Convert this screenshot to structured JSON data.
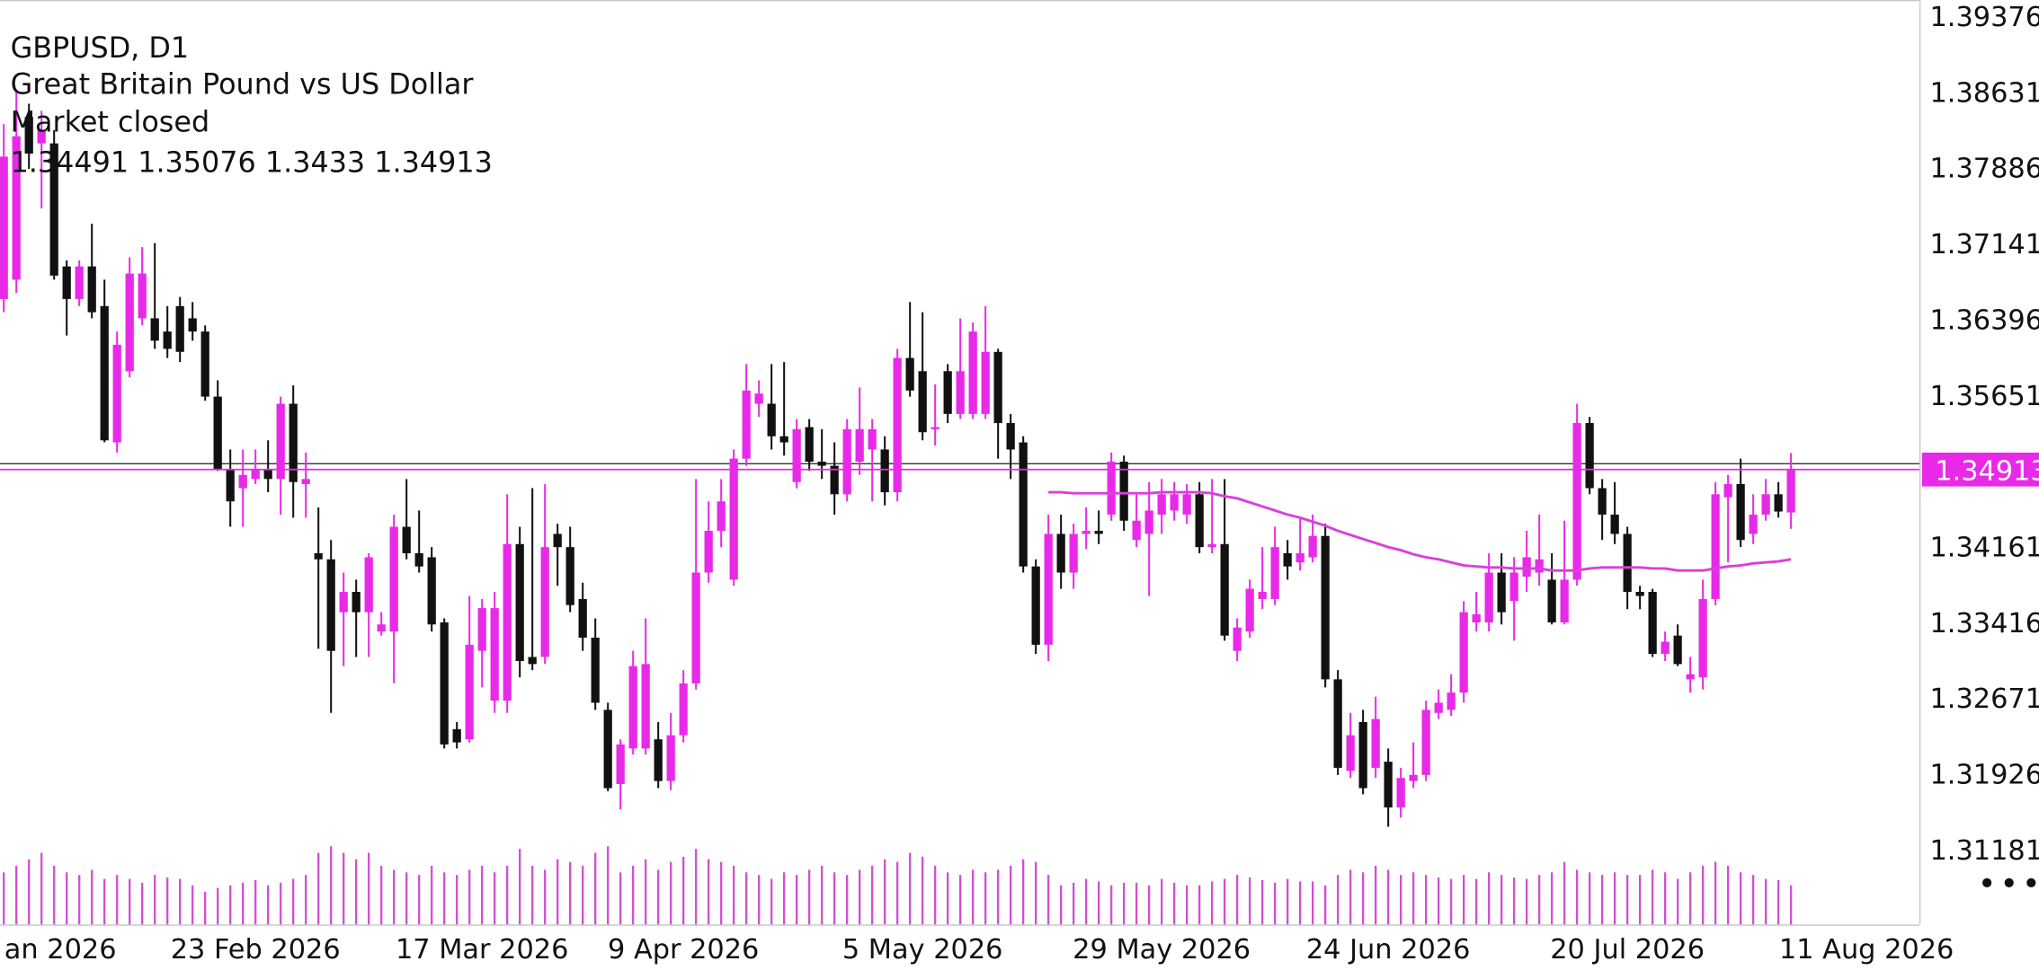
{
  "chart_data": {
    "type": "candlestick",
    "title": "GBPUSD, D1",
    "subtitle": "Great Britain Pound vs US Dollar",
    "status": "Market closed",
    "up_color": "#e82ae8",
    "down_color": "#111111",
    "ma_color": "#d940d9",
    "volume_color": "#d24fd2",
    "open": [
      1.3659,
      1.3678,
      1.3838,
      1.3812,
      1.3812,
      1.3691,
      1.3659,
      1.3691,
      1.3652,
      1.3518,
      1.3588,
      1.364,
      1.364,
      1.3627,
      1.3652,
      1.364,
      1.3627,
      1.3563,
      1.3492,
      1.3473,
      1.3482,
      1.3492,
      1.3482,
      1.3556,
      1.3477,
      1.3409,
      1.3403,
      1.3351,
      1.3371,
      1.3351,
      1.3332,
      1.3332,
      1.3435,
      1.3409,
      1.3405,
      1.3341,
      1.3236,
      1.3226,
      1.3313,
      1.3264,
      1.3264,
      1.3418,
      1.3307,
      1.3307,
      1.3428,
      1.3415,
      1.3364,
      1.3326,
      1.3255,
      1.3182,
      1.3217,
      1.3217,
      1.3226,
      1.3185,
      1.323,
      1.3281,
      1.339,
      1.3431,
      1.3383,
      1.3502,
      1.3556,
      1.3556,
      1.3524,
      1.3479,
      1.3533,
      1.3499,
      1.3495,
      1.3467,
      1.3499,
      1.3511,
      1.3511,
      1.3469,
      1.3601,
      1.3588,
      1.3531,
      1.3588,
      1.3546,
      1.3546,
      1.3546,
      1.3607,
      1.3537,
      1.3518,
      1.3396,
      1.3319,
      1.3428,
      1.339,
      1.3428,
      1.3431,
      1.3447,
      1.3499,
      1.3422,
      1.3428,
      1.3447,
      1.3451,
      1.3447,
      1.3467,
      1.3415,
      1.3418,
      1.3313,
      1.3332,
      1.3364,
      1.3364,
      1.3409,
      1.34,
      1.3405,
      1.3426,
      1.3285,
      1.3195,
      1.3243,
      1.3198,
      1.3204,
      1.3159,
      1.3185,
      1.3191,
      1.3252,
      1.3255,
      1.3272,
      1.3341,
      1.3341,
      1.339,
      1.3362,
      1.3386,
      1.339,
      1.3383,
      1.3341,
      1.3383,
      1.3537,
      1.3473,
      1.3447,
      1.3428,
      1.3371,
      1.3371,
      1.331,
      1.3328,
      1.3285,
      1.3287,
      1.3364,
      1.3464,
      1.3477,
      1.3428,
      1.3447,
      1.3467,
      1.34491
    ],
    "high": [
      1.3831,
      1.3863,
      1.3851,
      1.3844,
      1.3825,
      1.3697,
      1.3697,
      1.3733,
      1.3678,
      1.3627,
      1.37,
      1.371,
      1.3714,
      1.3652,
      1.3661,
      1.3656,
      1.3633,
      1.3579,
      1.3511,
      1.3511,
      1.3511,
      1.352,
      1.3563,
      1.3574,
      1.3508,
      1.3454,
      1.3422,
      1.339,
      1.3383,
      1.3409,
      1.3351,
      1.3447,
      1.3482,
      1.3451,
      1.3415,
      1.3345,
      1.3243,
      1.3367,
      1.3364,
      1.3371,
      1.3467,
      1.3435,
      1.3473,
      1.3477,
      1.3438,
      1.3435,
      1.338,
      1.3345,
      1.3262,
      1.3226,
      1.3313,
      1.3345,
      1.3243,
      1.3252,
      1.3294,
      1.3482,
      1.346,
      1.3482,
      1.3511,
      1.3595,
      1.3579,
      1.3595,
      1.3597,
      1.3541,
      1.3541,
      1.3531,
      1.3518,
      1.3541,
      1.3572,
      1.3541,
      1.3524,
      1.361,
      1.3656,
      1.3646,
      1.3575,
      1.3595,
      1.364,
      1.3636,
      1.3652,
      1.361,
      1.3546,
      1.3524,
      1.3403,
      1.3447,
      1.3447,
      1.3438,
      1.3454,
      1.3451,
      1.3508,
      1.3505,
      1.3467,
      1.3479,
      1.3482,
      1.3479,
      1.3477,
      1.3479,
      1.3482,
      1.3482,
      1.3345,
      1.3383,
      1.3415,
      1.3435,
      1.3422,
      1.3444,
      1.3447,
      1.3438,
      1.3294,
      1.3252,
      1.3255,
      1.3268,
      1.3217,
      1.3198,
      1.3223,
      1.3264,
      1.3275,
      1.329,
      1.3362,
      1.3371,
      1.3409,
      1.3409,
      1.3405,
      1.3431,
      1.3447,
      1.3409,
      1.3441,
      1.3556,
      1.3543,
      1.3482,
      1.3479,
      1.3435,
      1.3377,
      1.3374,
      1.3332,
      1.3339,
      1.3307,
      1.3383,
      1.3479,
      1.3486,
      1.3502,
      1.3467,
      1.3482,
      1.3479,
      1.35076
    ],
    "low": [
      1.3646,
      1.3665,
      1.3787,
      1.3748,
      1.3678,
      1.3623,
      1.3652,
      1.364,
      1.3518,
      1.3508,
      1.3582,
      1.3633,
      1.361,
      1.3601,
      1.3597,
      1.3618,
      1.3559,
      1.349,
      1.3435,
      1.3435,
      1.3477,
      1.3469,
      1.3447,
      1.3444,
      1.3444,
      1.3315,
      1.3252,
      1.3298,
      1.3307,
      1.3307,
      1.3328,
      1.3281,
      1.3403,
      1.339,
      1.3332,
      1.3217,
      1.3217,
      1.3223,
      1.3277,
      1.3252,
      1.3252,
      1.3287,
      1.3294,
      1.33,
      1.3377,
      1.3351,
      1.3313,
      1.3255,
      1.3175,
      1.3157,
      1.3211,
      1.3211,
      1.3178,
      1.3176,
      1.3223,
      1.3275,
      1.338,
      1.3415,
      1.3377,
      1.3495,
      1.3543,
      1.3511,
      1.3505,
      1.3473,
      1.349,
      1.3482,
      1.3447,
      1.346,
      1.3486,
      1.346,
      1.3456,
      1.346,
      1.3563,
      1.352,
      1.3515,
      1.3537,
      1.3541,
      1.3541,
      1.3541,
      1.3502,
      1.3482,
      1.339,
      1.331,
      1.3303,
      1.3374,
      1.3374,
      1.3413,
      1.3418,
      1.3441,
      1.3431,
      1.3415,
      1.3367,
      1.3428,
      1.3441,
      1.3438,
      1.3409,
      1.3409,
      1.3323,
      1.3303,
      1.3326,
      1.3354,
      1.3358,
      1.3383,
      1.3392,
      1.34,
      1.3277,
      1.3191,
      1.3188,
      1.3172,
      1.3188,
      1.314,
      1.3149,
      1.3178,
      1.3185,
      1.3246,
      1.3249,
      1.3262,
      1.3332,
      1.3332,
      1.3339,
      1.3323,
      1.3371,
      1.3377,
      1.3339,
      1.3339,
      1.3377,
      1.3467,
      1.3422,
      1.3418,
      1.3354,
      1.3354,
      1.3307,
      1.3303,
      1.3298,
      1.3272,
      1.3275,
      1.3358,
      1.34,
      1.3415,
      1.3418,
      1.3441,
      1.3444,
      1.3433
    ],
    "close": [
      1.3799,
      1.3819,
      1.3802,
      1.3825,
      1.3682,
      1.3659,
      1.3691,
      1.3646,
      1.352,
      1.3614,
      1.3684,
      1.3684,
      1.3618,
      1.361,
      1.3607,
      1.3627,
      1.3563,
      1.3492,
      1.346,
      1.3486,
      1.3492,
      1.3482,
      1.3556,
      1.3479,
      1.3482,
      1.3403,
      1.3313,
      1.3371,
      1.3351,
      1.3405,
      1.3339,
      1.3435,
      1.3409,
      1.3396,
      1.3339,
      1.3221,
      1.3223,
      1.3319,
      1.3355,
      1.3355,
      1.3418,
      1.3303,
      1.33,
      1.3415,
      1.3415,
      1.3358,
      1.3326,
      1.3262,
      1.3178,
      1.3221,
      1.3298,
      1.33,
      1.3185,
      1.323,
      1.3281,
      1.339,
      1.3431,
      1.346,
      1.3502,
      1.3569,
      1.3566,
      1.3524,
      1.3518,
      1.3531,
      1.3499,
      1.3495,
      1.3467,
      1.3531,
      1.3531,
      1.3531,
      1.3469,
      1.3601,
      1.3569,
      1.3528,
      1.3533,
      1.3546,
      1.3588,
      1.3627,
      1.3607,
      1.3537,
      1.3511,
      1.3396,
      1.3319,
      1.3428,
      1.339,
      1.3428,
      1.3431,
      1.3428,
      1.3499,
      1.3441,
      1.3441,
      1.3451,
      1.3467,
      1.3467,
      1.3467,
      1.3415,
      1.3418,
      1.3328,
      1.3336,
      1.3374,
      1.3371,
      1.3415,
      1.3396,
      1.3409,
      1.3426,
      1.3285,
      1.3198,
      1.323,
      1.3178,
      1.3246,
      1.3159,
      1.3188,
      1.3191,
      1.3255,
      1.3262,
      1.3272,
      1.3351,
      1.3349,
      1.339,
      1.3351,
      1.339,
      1.3405,
      1.3403,
      1.3341,
      1.3383,
      1.3537,
      1.3473,
      1.3447,
      1.3428,
      1.3371,
      1.3367,
      1.331,
      1.3322,
      1.33,
      1.329,
      1.3364,
      1.3467,
      1.3477,
      1.3422,
      1.3447,
      1.3467,
      1.345,
      1.34913
    ],
    "volume": [
      40,
      45,
      50,
      55,
      45,
      40,
      38,
      42,
      35,
      38,
      35,
      32,
      38,
      36,
      35,
      30,
      25,
      28,
      30,
      32,
      34,
      30,
      32,
      35,
      38,
      55,
      60,
      55,
      50,
      55,
      45,
      42,
      40,
      38,
      45,
      40,
      38,
      42,
      45,
      40,
      45,
      58,
      45,
      42,
      50,
      48,
      45,
      55,
      60,
      40,
      45,
      50,
      42,
      48,
      52,
      58,
      50,
      48,
      45,
      40,
      38,
      35,
      40,
      38,
      42,
      45,
      40,
      38,
      42,
      45,
      50,
      48,
      55,
      52,
      45,
      40,
      38,
      42,
      40,
      42,
      45,
      50,
      48,
      38,
      30,
      32,
      35,
      33,
      30,
      32,
      32,
      30,
      35,
      32,
      30,
      30,
      33,
      35,
      38,
      36,
      34,
      32,
      35,
      33,
      33,
      30,
      38,
      42,
      40,
      45,
      42,
      38,
      40,
      38,
      36,
      35,
      38,
      35,
      40,
      38,
      36,
      35,
      38,
      40,
      48,
      42,
      40,
      38,
      40,
      38,
      38,
      42,
      40,
      35,
      40,
      45,
      48,
      45,
      40,
      38,
      35,
      34,
      30
    ],
    "ma": [
      null,
      null,
      null,
      null,
      null,
      null,
      null,
      null,
      null,
      null,
      null,
      null,
      null,
      null,
      null,
      null,
      null,
      null,
      null,
      null,
      null,
      null,
      null,
      null,
      null,
      null,
      null,
      null,
      null,
      null,
      null,
      null,
      null,
      null,
      null,
      null,
      null,
      null,
      null,
      null,
      null,
      null,
      null,
      null,
      null,
      null,
      null,
      null,
      null,
      null,
      null,
      null,
      null,
      null,
      null,
      null,
      null,
      null,
      null,
      null,
      null,
      null,
      null,
      null,
      null,
      null,
      null,
      null,
      null,
      null,
      null,
      null,
      null,
      null,
      null,
      null,
      null,
      null,
      null,
      null,
      null,
      null,
      null,
      1.3469,
      1.3469,
      1.3468,
      1.3468,
      1.3468,
      1.3468,
      1.3468,
      1.3468,
      1.3468,
      1.3469,
      1.3469,
      1.3469,
      1.3469,
      1.3468,
      1.3465,
      1.3463,
      1.3459,
      1.3455,
      1.3451,
      1.3447,
      1.3444,
      1.344,
      1.3436,
      1.3431,
      1.3427,
      1.3423,
      1.3419,
      1.3415,
      1.3412,
      1.3408,
      1.3405,
      1.3403,
      1.34,
      1.3397,
      1.3396,
      1.3395,
      1.3395,
      1.3394,
      1.3394,
      1.3394,
      1.3392,
      1.3392,
      1.3392,
      1.3394,
      1.3395,
      1.3395,
      1.3395,
      1.3395,
      1.3394,
      1.3394,
      1.3392,
      1.3392,
      1.3392,
      1.3394,
      1.3396,
      1.3397,
      1.3399,
      1.34,
      1.3401,
      1.3403
    ],
    "ask_line": 1.3497,
    "ylim": [
      1.3044,
      1.3953
    ],
    "yticks": [
      1.39376,
      1.38631,
      1.37886,
      1.37141,
      1.36396,
      1.35651,
      1.34161,
      1.33416,
      1.32671,
      1.31926,
      1.31181
    ],
    "volume_ylim": [
      0,
      100
    ],
    "xlim": [
      -0.3,
      152.2
    ],
    "xticks": [
      {
        "value": 4.5,
        "label": "an 2026"
      },
      {
        "value": 20,
        "label": "23 Feb 2026"
      },
      {
        "value": 38,
        "label": "17 Mar 2026"
      },
      {
        "value": 54,
        "label": "9 Apr 2026"
      },
      {
        "value": 73,
        "label": "5 May 2026"
      },
      {
        "value": 92,
        "label": "29 May 2026"
      },
      {
        "value": 110,
        "label": "24 Jun 2026"
      },
      {
        "value": 129,
        "label": "20 Jul 2026"
      },
      {
        "value": 148,
        "label": "11 Aug 2026"
      }
    ]
  }
}
